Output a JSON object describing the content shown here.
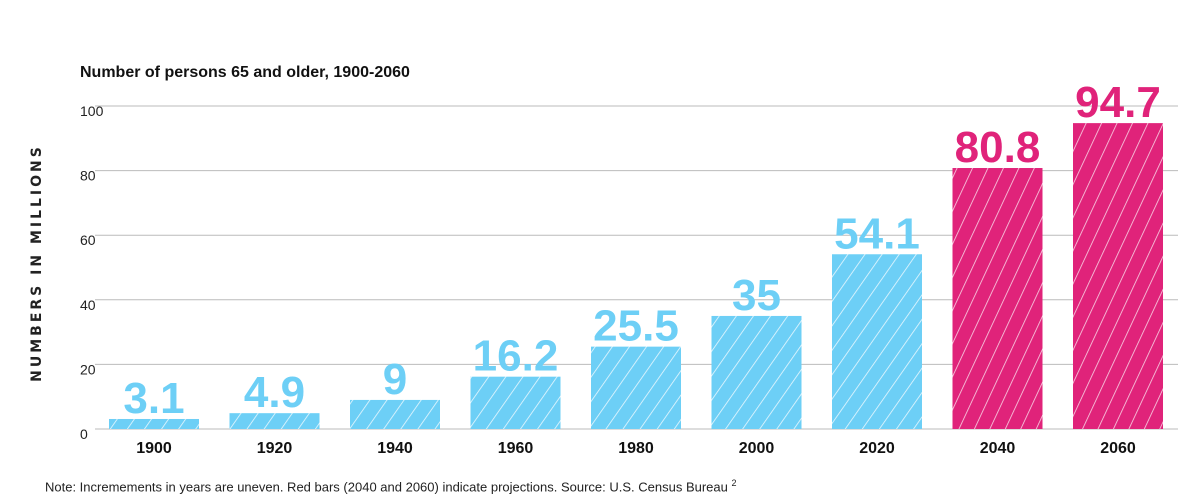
{
  "chart_data": {
    "type": "bar",
    "title": "Number of persons 65 and older, 1900-2060",
    "ylabel": "NUMBERS IN MILLIONS",
    "xlabel": "",
    "ylim": [
      0,
      100
    ],
    "yticks": [
      0,
      20,
      40,
      60,
      80,
      100
    ],
    "grid": true,
    "categories": [
      "1900",
      "1920",
      "1940",
      "1960",
      "1980",
      "2000",
      "2020",
      "2040",
      "2060"
    ],
    "values": [
      3.1,
      4.9,
      9,
      16.2,
      25.5,
      35,
      54.1,
      80.8,
      94.7
    ],
    "value_labels": [
      "3.1",
      "4.9",
      "9",
      "16.2",
      "25.5",
      "35",
      "54.1",
      "80.8",
      "94.7"
    ],
    "projected": [
      false,
      false,
      false,
      false,
      false,
      false,
      false,
      true,
      true
    ],
    "colors": {
      "actual": "#6dcff6",
      "projection": "#e0237a",
      "grid": "#bbbbbb"
    }
  },
  "note": {
    "text": "Note: Incremements in years are uneven. Red bars (2040 and 2060) indicate projections. Source: U.S. Census Bureau ",
    "sup": "2"
  }
}
